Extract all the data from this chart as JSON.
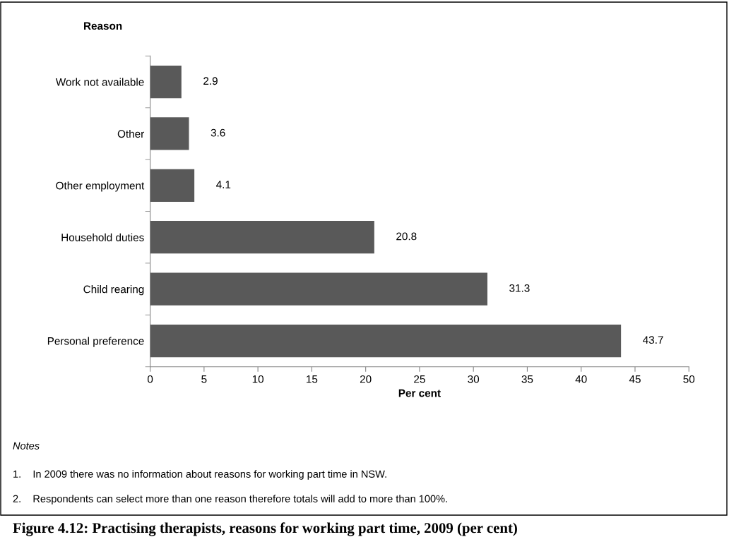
{
  "chart_data": {
    "type": "bar",
    "orientation": "horizontal",
    "title": "Figure 4.12: Practising therapists, reasons for working part time, 2009 (per cent)",
    "xlabel": "Per cent",
    "ylabel": "Reason",
    "categories": [
      "Work not available",
      "Other",
      "Other employment",
      "Household duties",
      "Child rearing",
      "Personal preference"
    ],
    "values": [
      2.9,
      3.6,
      4.1,
      20.8,
      31.3,
      43.7
    ],
    "color": "#595959",
    "xlim": [
      0,
      50
    ],
    "xticks": [
      0,
      5,
      10,
      15,
      20,
      25,
      30,
      35,
      40,
      45,
      50
    ],
    "data_labels": true,
    "grid": false,
    "legend": false,
    "annotations": [
      "Notes",
      "1.    In 2009 there was no information about reasons for working part time in NSW.",
      "2.    Respondents can select more than one reason therefore totals will add to more than 100%."
    ]
  }
}
